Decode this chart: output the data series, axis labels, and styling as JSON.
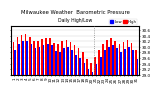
{
  "title": "Milwaukee Weather  Barometric Pressure",
  "subtitle": "Daily High/Low",
  "legend_high": "High",
  "legend_low": "Low",
  "legend_high_color": "#ff0000",
  "legend_low_color": "#0000ff",
  "background_color": "#ffffff",
  "plot_bg_color": "#ffffff",
  "bar_width": 0.42,
  "ylim": [
    29.0,
    30.75
  ],
  "yticks": [
    29.0,
    29.2,
    29.4,
    29.6,
    29.8,
    30.0,
    30.2,
    30.4,
    30.6
  ],
  "ytick_labels": [
    "29.0",
    "29.2",
    "29.4",
    "29.6",
    "29.8",
    "30.0",
    "30.2",
    "30.4",
    "30.6"
  ],
  "num_days": 31,
  "x_labels": [
    "1",
    "2",
    "3",
    "4",
    "5",
    "6",
    "7",
    "8",
    "9",
    "10",
    "11",
    "12",
    "13",
    "14",
    "15",
    "16",
    "17",
    "18",
    "19",
    "20",
    "21",
    "22",
    "23",
    "24",
    "25",
    "26",
    "27",
    "28",
    "29",
    "30",
    "31"
  ],
  "highs": [
    30.18,
    30.35,
    30.42,
    30.45,
    30.35,
    30.2,
    30.22,
    30.28,
    30.31,
    30.3,
    30.15,
    30.1,
    30.22,
    30.25,
    30.18,
    30.05,
    29.95,
    29.8,
    29.55,
    29.42,
    29.65,
    29.88,
    30.1,
    30.25,
    30.3,
    30.22,
    30.1,
    30.18,
    30.25,
    30.15,
    29.9
  ],
  "lows": [
    29.88,
    30.1,
    30.2,
    30.22,
    30.1,
    29.95,
    30.0,
    30.05,
    30.1,
    30.05,
    29.85,
    29.8,
    29.95,
    30.0,
    29.88,
    29.72,
    29.6,
    29.42,
    29.2,
    29.1,
    29.4,
    29.62,
    29.88,
    30.0,
    30.05,
    29.95,
    29.82,
    29.92,
    30.0,
    29.88,
    29.55
  ],
  "dotted_line_x": 20,
  "high_color": "#ff0000",
  "low_color": "#0000ff",
  "tick_fontsize": 3.0,
  "title_fontsize": 3.8,
  "ylabel_fontsize": 3.0,
  "ylabel_side": "right"
}
